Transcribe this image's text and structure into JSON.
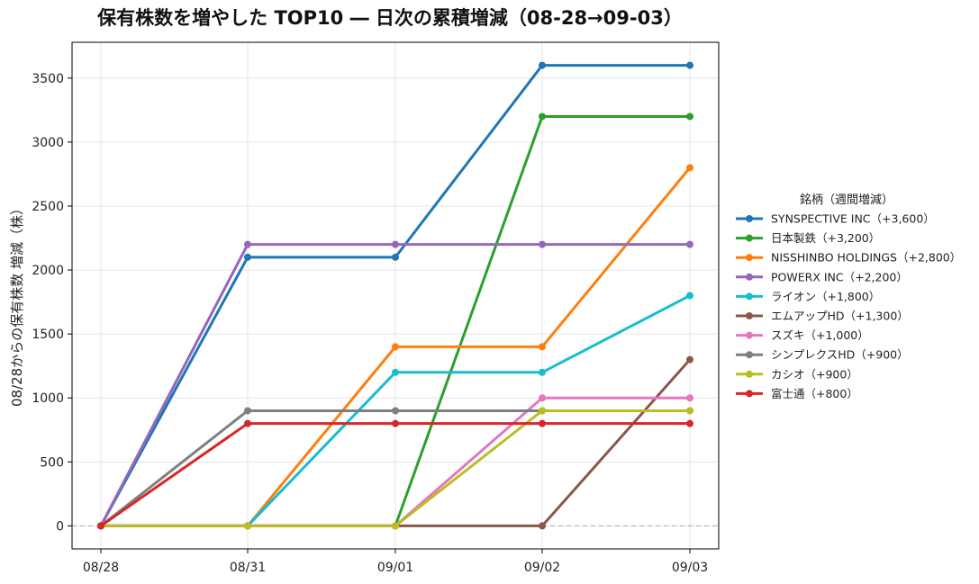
{
  "chart_data": {
    "type": "line",
    "title": "保有株数を増やした TOP10 ― 日次の累積増減（08-28→09-03）",
    "xlabel": "",
    "ylabel": "08/28からの保有株数 増減（株）",
    "categories": [
      "08/28",
      "08/31",
      "09/01",
      "09/02",
      "09/03"
    ],
    "ylim": [
      -180,
      3780
    ],
    "yticks": [
      0,
      500,
      1000,
      1500,
      2000,
      2500,
      3000,
      3500
    ],
    "grid": true,
    "legend": {
      "title": "銘柄（週間増減）",
      "placement": "right"
    },
    "series": [
      {
        "name": "SYNSPECTIVE INC（+3,600）",
        "color": "#1f77b4",
        "values": [
          0,
          2100,
          2100,
          3600,
          3600
        ]
      },
      {
        "name": "日本製鉄（+3,200）",
        "color": "#2ca02c",
        "values": [
          0,
          0,
          0,
          3200,
          3200
        ]
      },
      {
        "name": "NISSHINBO HOLDINGS（+2,800）",
        "color": "#ff7f0e",
        "values": [
          0,
          0,
          1400,
          1400,
          2800
        ]
      },
      {
        "name": "POWERX INC（+2,200）",
        "color": "#9467bd",
        "values": [
          0,
          2200,
          2200,
          2200,
          2200
        ]
      },
      {
        "name": "ライオン（+1,800）",
        "color": "#17becf",
        "values": [
          0,
          0,
          1200,
          1200,
          1800
        ]
      },
      {
        "name": "エムアップHD（+1,300）",
        "color": "#8c564b",
        "values": [
          0,
          0,
          0,
          0,
          1300
        ]
      },
      {
        "name": "スズキ（+1,000）",
        "color": "#e377c2",
        "values": [
          0,
          0,
          0,
          1000,
          1000
        ]
      },
      {
        "name": "シンプレクスHD（+900）",
        "color": "#7f7f7f",
        "values": [
          0,
          900,
          900,
          900,
          900
        ]
      },
      {
        "name": "カシオ（+900）",
        "color": "#bcbd22",
        "values": [
          0,
          0,
          0,
          900,
          900
        ]
      },
      {
        "name": "富士通（+800）",
        "color": "#d62728",
        "values": [
          0,
          800,
          800,
          800,
          800
        ]
      }
    ]
  }
}
